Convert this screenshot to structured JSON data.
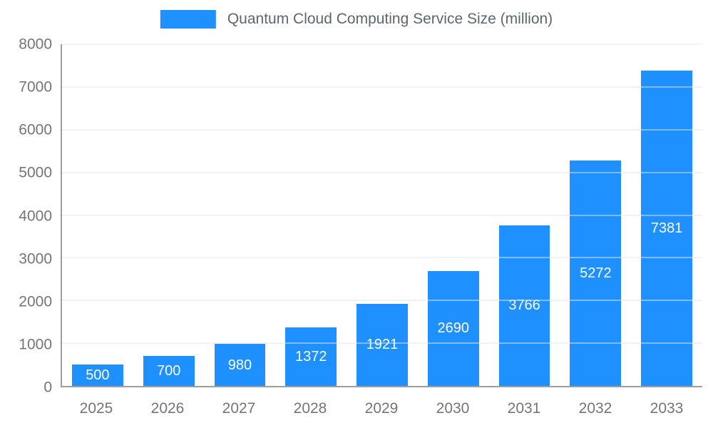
{
  "chart_data": {
    "type": "bar",
    "title": "Quantum Cloud Computing Service Size (million)",
    "categories": [
      "2025",
      "2026",
      "2027",
      "2028",
      "2029",
      "2030",
      "2031",
      "2032",
      "2033"
    ],
    "series": [
      {
        "name": "Quantum Cloud Computing Service Size (million)",
        "values": [
          500,
          700,
          980,
          1372,
          1921,
          2690,
          3766,
          5272,
          7381
        ]
      }
    ],
    "values": [
      500,
      700,
      980,
      1372,
      1921,
      2690,
      3766,
      5272,
      7381
    ],
    "data_labels": [
      "500",
      "700",
      "980",
      "1372",
      "1921",
      "2690",
      "3766",
      "5272",
      "7381"
    ],
    "xlabel": "",
    "ylabel": "",
    "ylim": [
      0,
      8000
    ],
    "yticks": [
      0,
      1000,
      2000,
      3000,
      4000,
      5000,
      6000,
      7000,
      8000
    ],
    "grid": true,
    "legend_position": "top-center",
    "colors": {
      "bar": "#1e90ff",
      "bar_value_label": "#ffffff",
      "axis_text": "#757575",
      "title_text": "#5c6670",
      "gridline": "#e4e4e4",
      "axis_line": "#9e9e9e",
      "background": "#ffffff"
    }
  }
}
